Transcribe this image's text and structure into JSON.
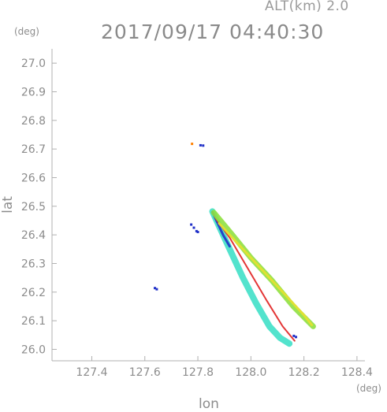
{
  "header": {
    "alt_label": "ALT(km) 2.0",
    "timestamp": "2017/09/17 04:40:30",
    "y_unit": "(deg)",
    "x_unit": "(deg)"
  },
  "chart_data": {
    "type": "scatter",
    "title": "2017/09/17 04:40:30",
    "subtitle": "ALT(km) 2.0",
    "xlabel": "lon",
    "ylabel": "lat",
    "xlim": [
      127.25,
      128.43
    ],
    "ylim": [
      25.96,
      27.05
    ],
    "x_ticks": [
      127.4,
      127.6,
      127.8,
      128.0,
      128.2,
      128.4
    ],
    "x_tick_labels": [
      "127.4",
      "127.6",
      "127.8",
      "128.0",
      "128.2",
      "128.4"
    ],
    "y_ticks": [
      26.0,
      26.1,
      26.2,
      26.3,
      26.4,
      26.5,
      26.6,
      26.7,
      26.8,
      26.9,
      27.0
    ],
    "y_tick_labels": [
      "26.0",
      "26.1",
      "26.2",
      "26.3",
      "26.4",
      "26.5",
      "26.6",
      "26.7",
      "26.8",
      "26.9",
      "27.0"
    ],
    "grid": false,
    "colors": {
      "blue": "#2030c8",
      "cyan": "#40e0c8",
      "green": "#90e040",
      "yellow": "#e8e030",
      "orange": "#ff8000",
      "red": "#e02020",
      "axis": "#b0b0b0",
      "text": "#8c8c8c"
    },
    "points": [
      {
        "x": 127.81,
        "y": 26.713,
        "color": "blue"
      },
      {
        "x": 127.82,
        "y": 26.712,
        "color": "blue"
      },
      {
        "x": 127.778,
        "y": 26.718,
        "color": "orange"
      },
      {
        "x": 127.775,
        "y": 26.436,
        "color": "blue"
      },
      {
        "x": 127.785,
        "y": 26.425,
        "color": "blue"
      },
      {
        "x": 127.795,
        "y": 26.413,
        "color": "blue"
      },
      {
        "x": 127.8,
        "y": 26.41,
        "color": "blue"
      },
      {
        "x": 127.638,
        "y": 26.214,
        "color": "blue"
      },
      {
        "x": 127.645,
        "y": 26.21,
        "color": "blue"
      },
      {
        "x": 128.162,
        "y": 26.047,
        "color": "blue"
      },
      {
        "x": 128.17,
        "y": 26.043,
        "color": "blue"
      }
    ],
    "series": [
      {
        "x": [
          127.855,
          127.88,
          127.92,
          127.97,
          128.02,
          128.07,
          128.11,
          128.145
        ],
        "y": [
          26.482,
          26.43,
          26.35,
          26.25,
          26.16,
          26.08,
          26.04,
          26.02
        ],
        "color": "cyan",
        "width": 8
      },
      {
        "x": [
          127.855,
          127.875,
          127.895,
          127.92
        ],
        "y": [
          26.48,
          26.44,
          26.4,
          26.36
        ],
        "color": "blue",
        "width": 3
      },
      {
        "x": [
          127.865,
          127.92,
          127.99,
          128.06,
          128.12,
          128.165
        ],
        "y": [
          26.46,
          26.39,
          26.28,
          26.17,
          26.08,
          26.03
        ],
        "color": "red",
        "width": 2
      },
      {
        "x": [
          127.86,
          127.93,
          128.0,
          128.08,
          128.16,
          128.235
        ],
        "y": [
          26.478,
          26.4,
          26.32,
          26.24,
          26.15,
          26.08
        ],
        "color": "green",
        "width": 7
      },
      {
        "x": [
          127.88,
          127.95,
          128.04,
          128.13,
          128.2,
          128.23
        ],
        "y": [
          26.44,
          26.37,
          26.28,
          26.19,
          26.12,
          26.085
        ],
        "color": "yellow",
        "width": 3
      }
    ]
  }
}
